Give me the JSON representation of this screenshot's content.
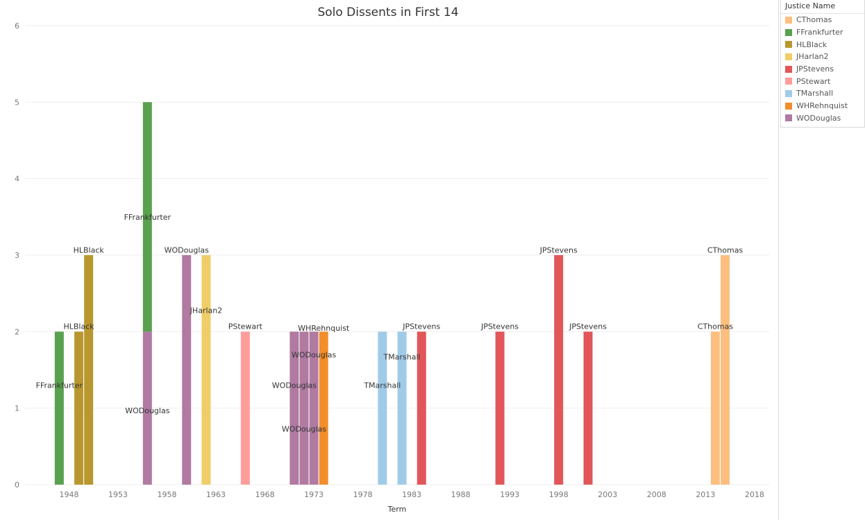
{
  "chart_data": {
    "type": "bar",
    "title": "Solo Dissents in First 14",
    "xlabel": "Term",
    "ylabel": "",
    "ylim": [
      0,
      6
    ],
    "xlim": [
      1943.5,
      2019.5
    ],
    "y_ticks": [
      0,
      1,
      2,
      3,
      4,
      5,
      6
    ],
    "x_ticks": [
      1948,
      1953,
      1958,
      1963,
      1968,
      1973,
      1978,
      1983,
      1988,
      1993,
      1998,
      2003,
      2008,
      2013,
      2018
    ],
    "grid": "horizontal",
    "legend_position": "right",
    "legend_title": "Justice Name",
    "colors": {
      "CThomas": "#fdbf7f",
      "FFrankfurter": "#59a14f",
      "HLBlack": "#b8972e",
      "JHarlan2": "#f0cd67",
      "JPStevens": "#e15759",
      "PStewart": "#ff9d9a",
      "TMarshall": "#a0cbe8",
      "WHRehnquist": "#f28e2b",
      "WODouglas": "#b07aa1"
    },
    "legend_items": [
      "CThomas",
      "FFrankfurter",
      "HLBlack",
      "JHarlan2",
      "JPStevens",
      "PStewart",
      "TMarshall",
      "WHRehnquist",
      "WODouglas"
    ],
    "bars": [
      {
        "term": 1947,
        "segments": [
          {
            "justice": "FFrankfurter",
            "value": 2
          }
        ],
        "labels": [
          {
            "text": "FFrankfurter",
            "y": 1.3
          }
        ]
      },
      {
        "term": 1949,
        "segments": [
          {
            "justice": "HLBlack",
            "value": 2
          }
        ],
        "labels": [
          {
            "text": "HLBlack",
            "y": 2.07
          }
        ]
      },
      {
        "term": 1950,
        "segments": [
          {
            "justice": "HLBlack",
            "value": 3
          }
        ],
        "labels": [
          {
            "text": "HLBlack",
            "y": 3.07
          }
        ]
      },
      {
        "term": 1956,
        "segments": [
          {
            "justice": "WODouglas",
            "value": 2
          },
          {
            "justice": "FFrankfurter",
            "value": 3
          }
        ],
        "labels": [
          {
            "text": "WODouglas",
            "y": 0.97
          },
          {
            "text": "FFrankfurter",
            "y": 3.5
          }
        ]
      },
      {
        "term": 1960,
        "segments": [
          {
            "justice": "WODouglas",
            "value": 3
          }
        ],
        "labels": [
          {
            "text": "WODouglas",
            "y": 3.07
          }
        ]
      },
      {
        "term": 1962,
        "segments": [
          {
            "justice": "JHarlan2",
            "value": 3
          }
        ],
        "labels": [
          {
            "text": "JHarlan2",
            "y": 2.28
          }
        ]
      },
      {
        "term": 1966,
        "segments": [
          {
            "justice": "PStewart",
            "value": 2
          }
        ],
        "labels": [
          {
            "text": "PStewart",
            "y": 2.07
          }
        ]
      },
      {
        "term": 1971,
        "segments": [
          {
            "justice": "WODouglas",
            "value": 2
          }
        ],
        "labels": [
          {
            "text": "WODouglas",
            "y": 1.3
          }
        ]
      },
      {
        "term": 1972,
        "segments": [
          {
            "justice": "WODouglas",
            "value": 2
          }
        ],
        "labels": [
          {
            "text": "WODouglas",
            "y": 0.73
          }
        ]
      },
      {
        "term": 1973,
        "segments": [
          {
            "justice": "WODouglas",
            "value": 2
          }
        ],
        "labels": [
          {
            "text": "WODouglas",
            "y": 1.7
          }
        ]
      },
      {
        "term": 1974,
        "segments": [
          {
            "justice": "WHRehnquist",
            "value": 2
          }
        ],
        "labels": [
          {
            "text": "WHRehnquist",
            "y": 2.05
          }
        ]
      },
      {
        "term": 1980,
        "segments": [
          {
            "justice": "TMarshall",
            "value": 2
          }
        ],
        "labels": [
          {
            "text": "TMarshall",
            "y": 1.3
          }
        ]
      },
      {
        "term": 1982,
        "segments": [
          {
            "justice": "TMarshall",
            "value": 2
          }
        ],
        "labels": [
          {
            "text": "TMarshall",
            "y": 1.67
          }
        ]
      },
      {
        "term": 1984,
        "segments": [
          {
            "justice": "JPStevens",
            "value": 2
          }
        ],
        "labels": [
          {
            "text": "JPStevens",
            "y": 2.07
          }
        ]
      },
      {
        "term": 1992,
        "segments": [
          {
            "justice": "JPStevens",
            "value": 2
          }
        ],
        "labels": [
          {
            "text": "JPStevens",
            "y": 2.07
          }
        ]
      },
      {
        "term": 1998,
        "segments": [
          {
            "justice": "JPStevens",
            "value": 3
          }
        ],
        "labels": [
          {
            "text": "JPStevens",
            "y": 3.07
          }
        ]
      },
      {
        "term": 2001,
        "segments": [
          {
            "justice": "JPStevens",
            "value": 2
          }
        ],
        "labels": [
          {
            "text": "JPStevens",
            "y": 2.07
          }
        ]
      },
      {
        "term": 2014,
        "segments": [
          {
            "justice": "CThomas",
            "value": 2
          }
        ],
        "labels": [
          {
            "text": "CThomas",
            "y": 2.07
          }
        ]
      },
      {
        "term": 2015,
        "segments": [
          {
            "justice": "CThomas",
            "value": 3
          }
        ],
        "labels": [
          {
            "text": "CThomas",
            "y": 3.07
          }
        ]
      }
    ]
  }
}
